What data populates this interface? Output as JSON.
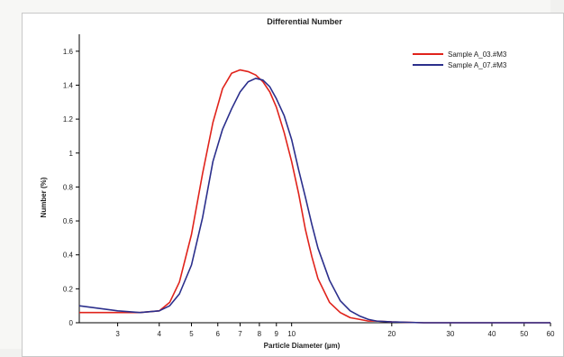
{
  "chart_data": {
    "type": "line",
    "title": "Differential Number",
    "xlabel": "Particle Diameter (µm)",
    "ylabel": "Number (%)",
    "xscale": "log",
    "xlim": [
      2.3,
      60
    ],
    "ylim": [
      0,
      1.7
    ],
    "x_ticks": [
      3,
      4,
      5,
      6,
      7,
      8,
      9,
      10,
      20,
      30,
      40,
      50,
      60
    ],
    "y_ticks": [
      0,
      0.2,
      0.4,
      0.6,
      0.8,
      1,
      1.2,
      1.4,
      1.6
    ],
    "grid": false,
    "legend": "top-right",
    "series": [
      {
        "name": "Sample A_03.#M3",
        "color": "#e0231b",
        "x": [
          2.3,
          3,
          3.5,
          4,
          4.3,
          4.6,
          5,
          5.4,
          5.8,
          6.2,
          6.6,
          7,
          7.4,
          7.8,
          8.2,
          8.6,
          9,
          9.5,
          10,
          10.5,
          11,
          11.5,
          12,
          13,
          14,
          15,
          16,
          17,
          18,
          20,
          25,
          30,
          40,
          60
        ],
        "y": [
          0.06,
          0.06,
          0.06,
          0.07,
          0.12,
          0.24,
          0.52,
          0.88,
          1.18,
          1.38,
          1.47,
          1.49,
          1.48,
          1.46,
          1.42,
          1.36,
          1.27,
          1.12,
          0.95,
          0.76,
          0.55,
          0.39,
          0.26,
          0.12,
          0.06,
          0.03,
          0.02,
          0.01,
          0.01,
          0.005,
          0,
          0,
          0,
          0
        ]
      },
      {
        "name": "Sample A_07.#M3",
        "color": "#2b2f8c",
        "x": [
          2.3,
          3,
          3.5,
          4,
          4.3,
          4.6,
          5,
          5.4,
          5.8,
          6.2,
          6.6,
          7,
          7.4,
          7.8,
          8.2,
          8.6,
          9,
          9.5,
          10,
          10.5,
          11,
          11.5,
          12,
          13,
          14,
          15,
          16,
          17,
          18,
          20,
          25,
          30,
          40,
          60
        ],
        "y": [
          0.1,
          0.07,
          0.06,
          0.07,
          0.1,
          0.17,
          0.34,
          0.62,
          0.95,
          1.14,
          1.26,
          1.36,
          1.42,
          1.44,
          1.43,
          1.39,
          1.32,
          1.22,
          1.08,
          0.9,
          0.74,
          0.58,
          0.44,
          0.25,
          0.13,
          0.07,
          0.04,
          0.02,
          0.01,
          0.005,
          0,
          0,
          0,
          0
        ]
      }
    ]
  }
}
